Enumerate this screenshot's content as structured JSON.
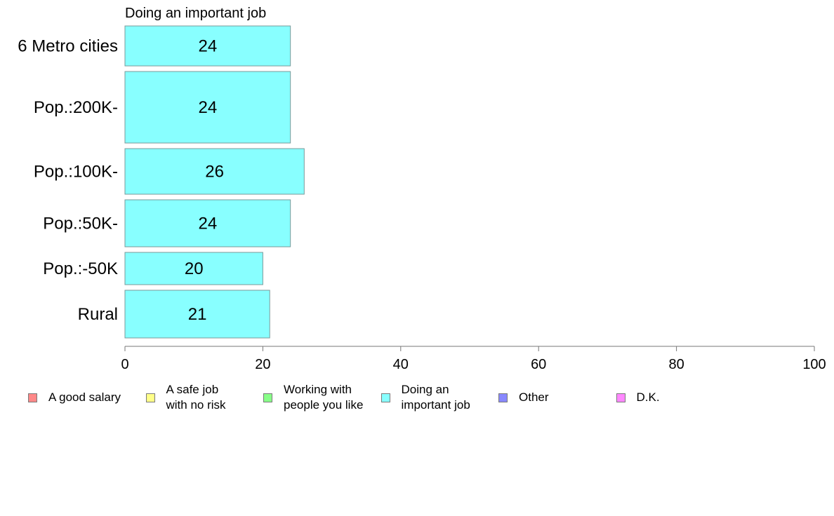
{
  "chart_data": {
    "type": "bar",
    "orientation": "horizontal",
    "title": "Doing an important job",
    "categories": [
      "6 Metro cities",
      "Pop.:200K-",
      "Pop.:100K-",
      "Pop.:50K-",
      "Pop.:-50K",
      "Rural"
    ],
    "values": [
      24,
      24,
      26,
      24,
      20,
      21
    ],
    "xlim": [
      0,
      100
    ],
    "xticks": [
      0,
      20,
      40,
      60,
      80,
      100
    ],
    "bar_color": "#88ffff",
    "bar_edge_color": "#7a9a9a",
    "grid": false,
    "legend_position": "bottom",
    "legend": [
      {
        "label": "A good salary",
        "color": "#ff8888"
      },
      {
        "label": "A safe job\nwith no risk",
        "color": "#ffff88"
      },
      {
        "label": "Working with\npeople you like",
        "color": "#88ff88"
      },
      {
        "label": "Doing an\nimportant job",
        "color": "#88ffff"
      },
      {
        "label": "Other",
        "color": "#8888ff"
      },
      {
        "label": "D.K.",
        "color": "#ff88ff"
      }
    ]
  }
}
